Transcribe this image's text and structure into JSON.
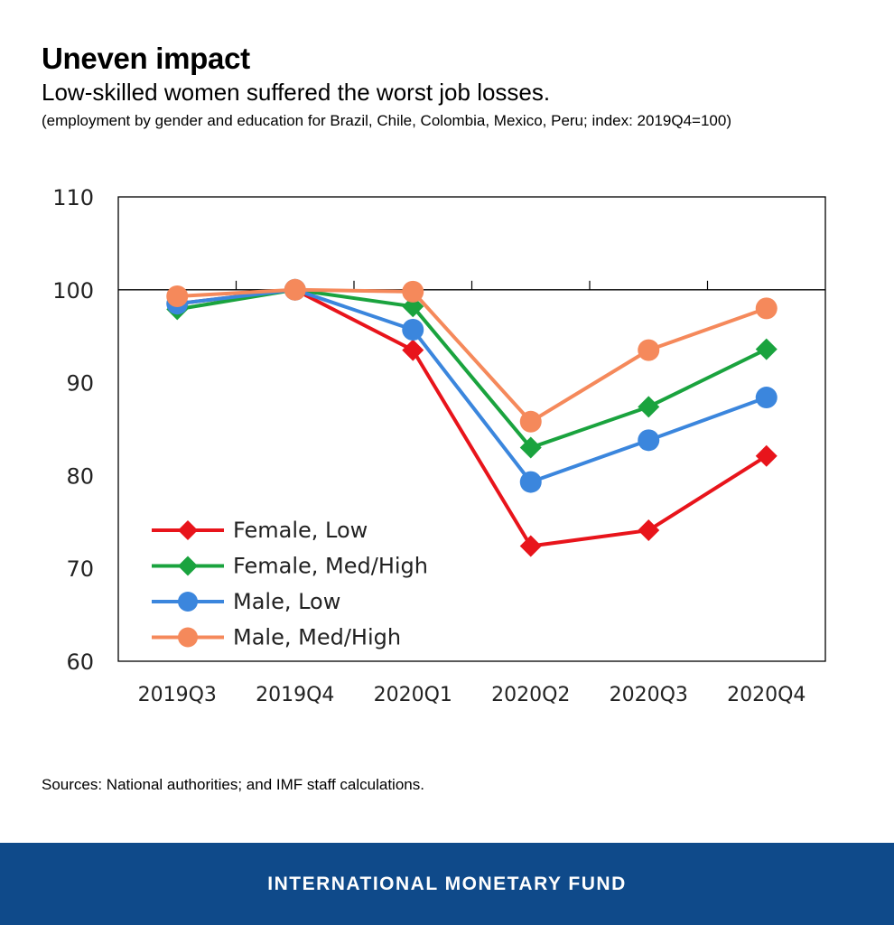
{
  "header": {
    "title": "Uneven impact",
    "subtitle": "Low-skilled women suffered the worst job losses.",
    "note": "(employment by gender and education for Brazil, Chile, Colombia, Mexico, Peru; index: 2019Q4=100)"
  },
  "chart_data": {
    "type": "line",
    "categories": [
      "2019Q3",
      "2019Q4",
      "2020Q1",
      "2020Q2",
      "2020Q3",
      "2020Q4"
    ],
    "ylim": [
      60,
      110
    ],
    "yticks": [
      60,
      70,
      80,
      90,
      100,
      110
    ],
    "reference_line": 100,
    "legend_position": "bottom-left",
    "grid": false,
    "series": [
      {
        "name": "Female, Low",
        "color": "#e8141b",
        "marker": "diamond",
        "values": [
          98.5,
          100,
          93.5,
          72.4,
          74.1,
          82.1
        ]
      },
      {
        "name": "Female, Med/High",
        "color": "#1aa33e",
        "marker": "diamond",
        "values": [
          97.9,
          100,
          98.2,
          83.0,
          87.4,
          93.6
        ]
      },
      {
        "name": "Male, Low",
        "color": "#3b86dd",
        "marker": "circle",
        "values": [
          98.5,
          100,
          95.7,
          79.3,
          83.8,
          88.4
        ]
      },
      {
        "name": "Male, Med/High",
        "color": "#f5895b",
        "marker": "circle",
        "values": [
          99.3,
          100,
          99.8,
          85.8,
          93.5,
          98.0
        ]
      }
    ]
  },
  "source": "Sources: National authorities; and IMF staff calculations.",
  "footer": {
    "brand": "INTERNATIONAL MONETARY FUND"
  }
}
